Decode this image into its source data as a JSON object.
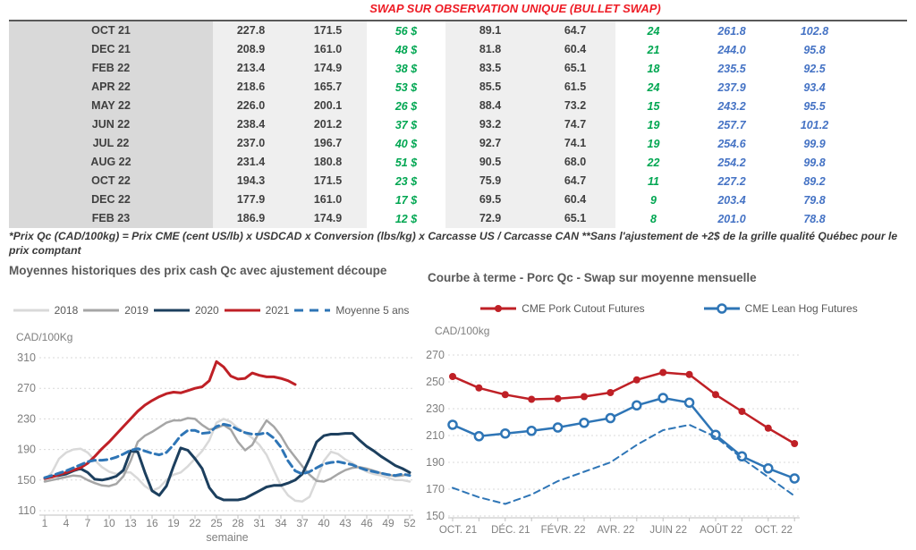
{
  "title": "SWAP SUR OBSERVATION UNIQUE (BULLET SWAP)",
  "table": {
    "column_styles": [
      "month",
      "num",
      "num",
      "green",
      "num",
      "num",
      "green",
      "blue",
      "blue"
    ],
    "rows": [
      [
        "OCT 21",
        "227.8",
        "171.5",
        "56 $",
        "89.1",
        "64.7",
        "24",
        "261.8",
        "102.8"
      ],
      [
        "DEC 21",
        "208.9",
        "161.0",
        "48 $",
        "81.8",
        "60.4",
        "21",
        "244.0",
        "95.8"
      ],
      [
        "FEB 22",
        "213.4",
        "174.9",
        "38 $",
        "83.5",
        "65.1",
        "18",
        "235.5",
        "92.5"
      ],
      [
        "APR 22",
        "218.6",
        "165.7",
        "53 $",
        "85.5",
        "61.5",
        "24",
        "237.9",
        "93.4"
      ],
      [
        "MAY 22",
        "226.0",
        "200.1",
        "26 $",
        "88.4",
        "73.2",
        "15",
        "243.2",
        "95.5"
      ],
      [
        "JUN 22",
        "238.4",
        "201.2",
        "37 $",
        "93.2",
        "74.7",
        "19",
        "257.7",
        "101.2"
      ],
      [
        "JUL 22",
        "237.0",
        "196.7",
        "40 $",
        "92.7",
        "74.1",
        "19",
        "254.6",
        "99.9"
      ],
      [
        "AUG 22",
        "231.4",
        "180.8",
        "51 $",
        "90.5",
        "68.0",
        "22",
        "254.2",
        "99.8"
      ],
      [
        "OCT 22",
        "194.3",
        "171.5",
        "23 $",
        "75.9",
        "64.7",
        "11",
        "227.2",
        "89.2"
      ],
      [
        "DEC 22",
        "177.9",
        "161.0",
        "17 $",
        "69.5",
        "60.4",
        "9",
        "203.4",
        "79.8"
      ],
      [
        "FEB 23",
        "186.9",
        "174.9",
        "12 $",
        "72.9",
        "65.1",
        "8",
        "201.0",
        "78.8"
      ]
    ]
  },
  "footnote": "*Prix Qc (CAD/100kg) = Prix CME (cent US/lb) x USDCAD x Conversion (lbs/kg) x Carcasse US / Carcasse CAN **Sans l'ajustement de +2$ de la grille qualité Québec pour le prix comptant",
  "colors": {
    "title_red": "#ee1c25",
    "table_green": "#00a651",
    "table_blue": "#4472c4",
    "gray_2018": "#d9d9d9",
    "gray_2019": "#a6a6a6",
    "navy_2020": "#1c3f5e",
    "red_2021": "#bf2026",
    "blue_avg": "#2e75b6",
    "axis_gray": "#7f7f7f",
    "grid_gray": "#d9d9d9"
  },
  "chart_data": [
    {
      "id": "historical",
      "type": "line",
      "title": "Moyennes historiques des prix cash Qc avec ajustement découpe",
      "ylabel": "CAD/100Kg",
      "xlabel": "semaine",
      "ylim": [
        110,
        310
      ],
      "yticks": [
        110,
        150,
        190,
        230,
        270,
        310
      ],
      "xticks": [
        1,
        4,
        7,
        10,
        13,
        16,
        19,
        22,
        25,
        28,
        31,
        34,
        37,
        40,
        43,
        46,
        49,
        52
      ],
      "x_range": [
        1,
        52
      ],
      "grid": "dotted-horizontal",
      "legend_position": "top",
      "series": [
        {
          "name": "2018",
          "color": "#d9d9d9",
          "style": "solid",
          "width": 2.5,
          "values": [
            150,
            160,
            178,
            186,
            190,
            191,
            186,
            176,
            167,
            161,
            158,
            160,
            160,
            152,
            142,
            136,
            140,
            150,
            157,
            160,
            168,
            178,
            188,
            202,
            225,
            230,
            226,
            218,
            212,
            205,
            196,
            183,
            163,
            143,
            130,
            123,
            122,
            128,
            150,
            175,
            187,
            184,
            177,
            172,
            166,
            161,
            158,
            156,
            153,
            150,
            150,
            148
          ]
        },
        {
          "name": "2019",
          "color": "#a6a6a6",
          "style": "solid",
          "width": 2.5,
          "values": [
            148,
            150,
            152,
            154,
            156,
            155,
            150,
            146,
            143,
            142,
            145,
            155,
            175,
            200,
            208,
            213,
            219,
            225,
            228,
            228,
            231,
            230,
            222,
            216,
            218,
            222,
            216,
            200,
            189,
            196,
            213,
            228,
            220,
            208,
            192,
            180,
            168,
            157,
            149,
            148,
            152,
            158,
            163,
            166,
            167,
            165,
            162,
            159,
            157,
            155,
            156,
            158
          ]
        },
        {
          "name": "2020",
          "color": "#1c3f5e",
          "style": "solid",
          "width": 3,
          "values": [
            153,
            155,
            156,
            158,
            162,
            165,
            160,
            151,
            150,
            152,
            155,
            163,
            188,
            187,
            160,
            136,
            130,
            142,
            168,
            192,
            189,
            178,
            165,
            140,
            128,
            124,
            124,
            124,
            126,
            131,
            136,
            141,
            143,
            143,
            146,
            150,
            158,
            178,
            200,
            208,
            210,
            210,
            211,
            211,
            202,
            194,
            188,
            181,
            175,
            169,
            165,
            160
          ]
        },
        {
          "name": "2021",
          "color": "#bf2026",
          "style": "solid",
          "width": 3,
          "values": [
            152,
            154,
            157,
            160,
            163,
            166,
            172,
            181,
            191,
            200,
            210,
            220,
            230,
            240,
            248,
            254,
            259,
            263,
            265,
            264,
            267,
            270,
            272,
            280,
            305,
            298,
            286,
            282,
            283,
            290,
            287,
            285,
            285,
            283,
            280,
            275,
            null,
            null,
            null,
            null,
            null,
            null,
            null,
            null,
            null,
            null,
            null,
            null,
            null,
            null,
            null,
            null
          ]
        },
        {
          "name": "Moyenne 5 ans",
          "color": "#2e75b6",
          "style": "dashed",
          "width": 3,
          "values": [
            153,
            156,
            159,
            162,
            166,
            170,
            174,
            176,
            176,
            177,
            180,
            184,
            189,
            191,
            188,
            185,
            183,
            186,
            196,
            208,
            215,
            215,
            211,
            212,
            220,
            223,
            221,
            216,
            212,
            210,
            210,
            212,
            205,
            193,
            175,
            162,
            158,
            161,
            166,
            171,
            173,
            174,
            172,
            170,
            166,
            163,
            161,
            159,
            157,
            156,
            158,
            156
          ]
        }
      ]
    },
    {
      "id": "forward",
      "type": "line",
      "title": "Courbe à terme - Porc Qc - Swap sur moyenne mensuelle",
      "ylabel": "CAD/100kg",
      "xlabel": "",
      "ylim": [
        150,
        270
      ],
      "yticks": [
        150,
        170,
        190,
        210,
        230,
        250,
        270
      ],
      "xticklabels": [
        "OCT. 21",
        "DÉC. 21",
        "FÉVR. 22",
        "AVR. 22",
        "JUIN 22",
        "AOÛT 22",
        "OCT. 22"
      ],
      "xticklabel_indices": [
        0,
        2,
        4,
        6,
        8,
        10,
        12
      ],
      "n_points": 14,
      "grid": "dotted-horizontal",
      "legend_position": "top",
      "series": [
        {
          "name": "CME Pork Cutout Futures",
          "color": "#bf2026",
          "style": "solid",
          "marker": "filled",
          "width": 2.5,
          "values": [
            254,
            245.5,
            240.5,
            237,
            237.5,
            239,
            242,
            251.5,
            257,
            255.5,
            240.5,
            228,
            215.5,
            204
          ]
        },
        {
          "name": "CME Lean Hog Futures",
          "color": "#2e75b6",
          "style": "solid",
          "marker": "open",
          "width": 2.5,
          "values": [
            218,
            209.5,
            211.5,
            213.5,
            216,
            219.5,
            223,
            232.5,
            238,
            234.5,
            210.5,
            194.5,
            185.5,
            178
          ]
        },
        {
          "name": "",
          "color": "#2e75b6",
          "style": "dashed",
          "marker": "none",
          "width": 2,
          "values": [
            171,
            164,
            159,
            166,
            176,
            183,
            190,
            203,
            214,
            218,
            209,
            193,
            179,
            165
          ]
        }
      ]
    }
  ]
}
